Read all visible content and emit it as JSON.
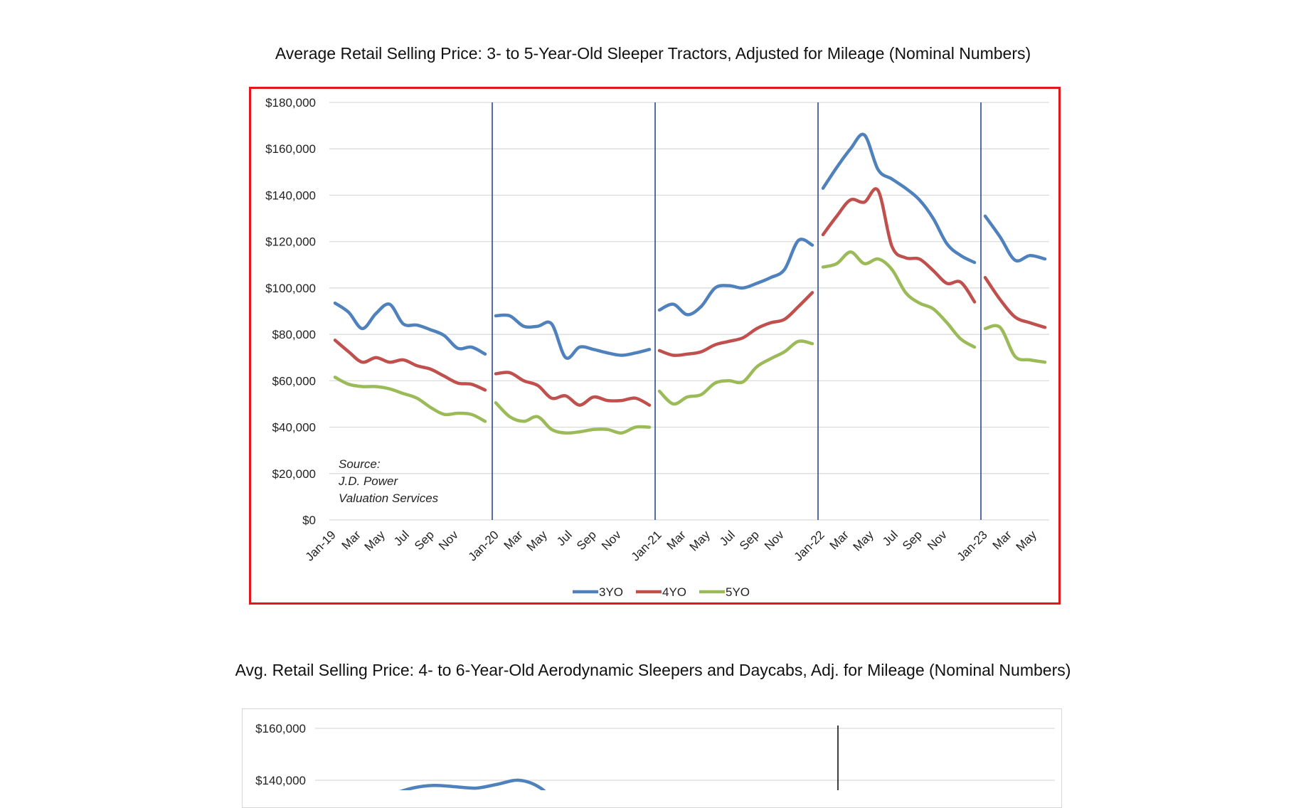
{
  "chart_data": [
    {
      "type": "line",
      "title": "Average Retail Selling Price: 3- to 5-Year-Old Sleeper Tractors, Adjusted for Mileage (Nominal Numbers)",
      "xlabel": "",
      "ylabel": "",
      "ylim": [
        0,
        180000
      ],
      "y_ticks": [
        "$180,000",
        "$160,000",
        "$140,000",
        "$120,000",
        "$100,000",
        "$80,000",
        "$60,000",
        "$40,000",
        "$20,000",
        "$0"
      ],
      "y_tick_values": [
        180000,
        160000,
        140000,
        120000,
        100000,
        80000,
        60000,
        40000,
        20000,
        0
      ],
      "x_ticks": [
        "Jan-19",
        "Mar",
        "May",
        "Jul",
        "Sep",
        "Nov",
        "Jan-20",
        "Mar",
        "May",
        "Jul",
        "Sep",
        "Nov",
        "Jan-21",
        "Mar",
        "May",
        "Jul",
        "Sep",
        "Nov",
        "Jan-22",
        "Mar",
        "May",
        "Jul",
        "Sep",
        "Nov",
        "Jan-23",
        "Mar",
        "May"
      ],
      "year_starts": [
        "Jan-20",
        "Jan-21",
        "Jan-22",
        "Jan-23"
      ],
      "grid": true,
      "legend": "bottom-center",
      "annotation": [
        "Source:",
        "J.D. Power",
        "Valuation Services"
      ],
      "segments": [
        {
          "year": "2019",
          "months": [
            "Jan-19",
            "Feb-19",
            "Mar-19",
            "Apr-19",
            "May-19",
            "Jun-19",
            "Jul-19",
            "Aug-19",
            "Sep-19",
            "Oct-19",
            "Nov-19",
            "Dec-19"
          ]
        },
        {
          "year": "2020",
          "months": [
            "Jan-20",
            "Feb-20",
            "Mar-20",
            "Apr-20",
            "May-20",
            "Jun-20",
            "Jul-20",
            "Aug-20",
            "Sep-20",
            "Oct-20",
            "Nov-20",
            "Dec-20"
          ]
        },
        {
          "year": "2021",
          "months": [
            "Jan-21",
            "Feb-21",
            "Mar-21",
            "Apr-21",
            "May-21",
            "Jun-21",
            "Jul-21",
            "Aug-21",
            "Sep-21",
            "Oct-21",
            "Nov-21",
            "Dec-21"
          ]
        },
        {
          "year": "2022",
          "months": [
            "Jan-22",
            "Feb-22",
            "Mar-22",
            "Apr-22",
            "May-22",
            "Jun-22",
            "Jul-22",
            "Aug-22",
            "Sep-22",
            "Oct-22",
            "Nov-22",
            "Dec-22"
          ]
        },
        {
          "year": "2023",
          "months": [
            "Jan-23",
            "Feb-23",
            "Mar-23",
            "Apr-23",
            "May-23"
          ]
        }
      ],
      "series": [
        {
          "name": "3YO",
          "color": "#4f81bd",
          "values": [
            [
              93500,
              89500,
              82500,
              89000,
              93000,
              84500,
              84000,
              82000,
              79500,
              74000,
              74500,
              71500
            ],
            [
              88000,
              88000,
              83500,
              83500,
              84500,
              70000,
              74500,
              73500,
              72000,
              71000,
              72000,
              73500
            ],
            [
              90500,
              93000,
              88500,
              92000,
              100000,
              101000,
              100000,
              102000,
              104500,
              108000,
              120500,
              118500
            ],
            [
              143000,
              152000,
              160000,
              166000,
              151000,
              147000,
              143000,
              138000,
              130000,
              119000,
              114000,
              111000
            ],
            [
              131000,
              122000,
              112000,
              114000,
              112500
            ]
          ]
        },
        {
          "name": "4YO",
          "color": "#c0504d",
          "values": [
            [
              77500,
              72500,
              68000,
              70000,
              68000,
              69000,
              66500,
              65000,
              62000,
              59000,
              58500,
              56000
            ],
            [
              63000,
              63500,
              60000,
              58000,
              52500,
              53500,
              49500,
              53000,
              51500,
              51500,
              52500,
              49500
            ],
            [
              73000,
              71000,
              71500,
              72500,
              75500,
              77000,
              78500,
              82500,
              85000,
              86500,
              92000,
              98000
            ],
            [
              123000,
              131000,
              138000,
              137000,
              142000,
              118000,
              113000,
              112500,
              107500,
              102000,
              102500,
              94000
            ],
            [
              104500,
              95000,
              87500,
              85000,
              83000
            ]
          ]
        },
        {
          "name": "5YO",
          "color": "#9bbb59",
          "values": [
            [
              61500,
              58500,
              57500,
              57500,
              56500,
              54500,
              52500,
              48500,
              45500,
              46000,
              45500,
              42500
            ],
            [
              50500,
              44500,
              42500,
              44500,
              39000,
              37500,
              38000,
              39000,
              39000,
              37500,
              40000,
              40000
            ],
            [
              55500,
              50000,
              53000,
              54000,
              59000,
              60000,
              59500,
              66000,
              69500,
              72500,
              77000,
              76000
            ],
            [
              109000,
              110500,
              115500,
              110500,
              112500,
              108000,
              98000,
              93500,
              91000,
              85000,
              78000,
              74500
            ],
            [
              82500,
              83000,
              70500,
              69000,
              68000
            ]
          ]
        }
      ]
    },
    {
      "type": "line",
      "title": "Avg. Retail Selling Price: 4- to 6-Year-Old Aerodynamic Sleepers and Daycabs, Adj. for Mileage (Nominal Numbers)",
      "xlabel": "",
      "ylabel": "",
      "visible_y_ticks": [
        "$160,000",
        "$140,000"
      ],
      "visible_y_tick_values": [
        160000,
        140000
      ],
      "grid": true,
      "series": [
        {
          "color": "#4f81bd",
          "values": [
            132000,
            134500,
            137000,
            138000,
            137500,
            137000,
            138500,
            140000,
            137000,
            129000
          ]
        }
      ]
    }
  ]
}
